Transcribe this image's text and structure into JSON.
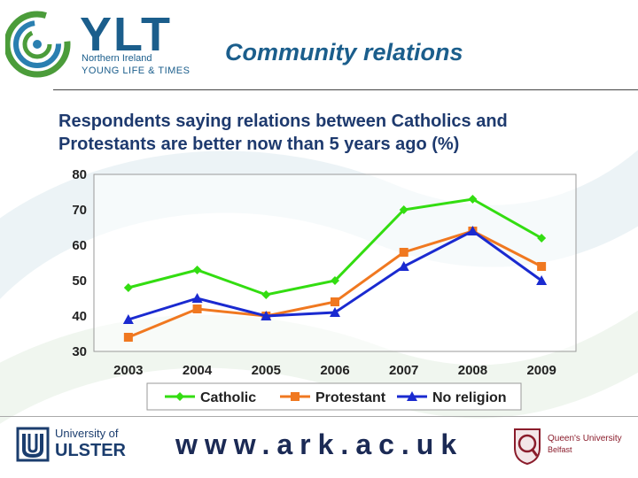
{
  "header": {
    "logo_main": "YLT",
    "logo_line1": "Northern Ireland",
    "logo_line2": "YOUNG LIFE & TIMES",
    "slide_title": "Community relations"
  },
  "subtitle_lines": [
    "Respondents saying relations between Catholics and",
    "Protestants are better now than 5 years ago (%)"
  ],
  "chart_data": {
    "type": "line",
    "title": "Respondents saying relations between Catholics and Protestants are better now than 5 years ago (%)",
    "categories": [
      "2003",
      "2004",
      "2005",
      "2006",
      "2007",
      "2008",
      "2009"
    ],
    "ylim": [
      30,
      80
    ],
    "yticks": [
      30,
      40,
      50,
      60,
      70,
      80
    ],
    "grid": false,
    "legend": "bottom",
    "series": [
      {
        "name": "Catholic",
        "color": "#33dd11",
        "marker": "diamond",
        "values": [
          48,
          53,
          46,
          50,
          70,
          73,
          62
        ]
      },
      {
        "name": "Protestant",
        "color": "#f07820",
        "marker": "square",
        "values": [
          34,
          42,
          40,
          44,
          58,
          64,
          54
        ]
      },
      {
        "name": "No religion",
        "color": "#1a2ad0",
        "marker": "triangle",
        "values": [
          39,
          45,
          40,
          41,
          54,
          64,
          50
        ]
      }
    ]
  },
  "footer": {
    "uu_line1": "University of",
    "uu_line2": "ULSTER",
    "website": "www.ark.ac.uk",
    "qub_line1": "Queen's University",
    "qub_line2": "Belfast"
  }
}
